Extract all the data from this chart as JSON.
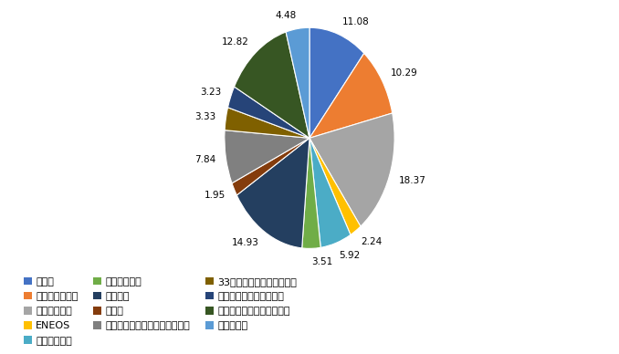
{
  "labels": [
    "浅沼組",
    "日本たばこ産業",
    "武田薬品工業",
    "ENEOS",
    "九州旅客鉄道",
    "ソフトバンク",
    "三菱商事",
    "ベリテ",
    "みずほフィナンシャルグループ",
    "33フィナンシャルグループ",
    "りそなホールディングス",
    "東京海上ホールディングス",
    "オリックス"
  ],
  "values": [
    11.08,
    10.29,
    18.37,
    2.24,
    5.92,
    3.51,
    14.93,
    1.95,
    7.84,
    3.33,
    3.23,
    12.82,
    4.48
  ],
  "colors": [
    "#4472C4",
    "#ED7D31",
    "#A5A5A5",
    "#FFC000",
    "#4BACC6",
    "#70AD47",
    "#243F60",
    "#843C0C",
    "#808080",
    "#7F6000",
    "#264478",
    "#375623",
    "#5B9BD5"
  ],
  "startangle": 90,
  "figsize": [
    6.78,
    3.88
  ],
  "dpi": 100,
  "legend_rows": [
    [
      "浅沼組",
      "日本たばこ産業",
      "武田薬品工業"
    ],
    [
      "ENEOS",
      "九州旅客鉄道",
      "ソフトバンク"
    ],
    [
      "三菱商事",
      "ベリテ",
      "みずほフィナンシャルグループ"
    ],
    [
      "33フィナンシャルグループ",
      "りそなホールディングス",
      "東京海上ホールディングス"
    ],
    [
      "オリックス"
    ]
  ]
}
